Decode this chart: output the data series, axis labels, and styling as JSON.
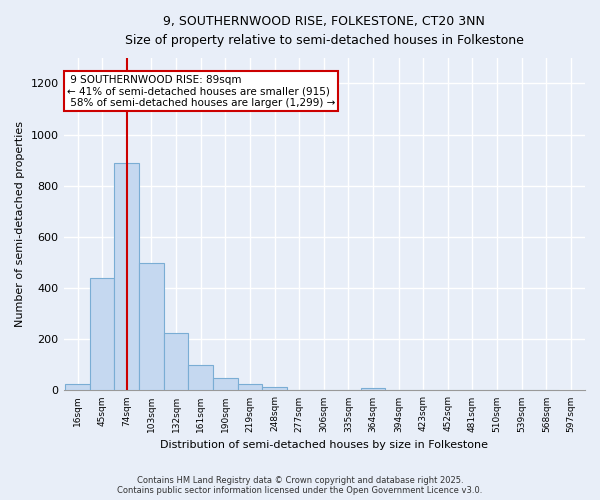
{
  "title1": "9, SOUTHERNWOOD RISE, FOLKESTONE, CT20 3NN",
  "title2": "Size of property relative to semi-detached houses in Folkestone",
  "xlabel": "Distribution of semi-detached houses by size in Folkestone",
  "ylabel": "Number of semi-detached properties",
  "bin_labels": [
    "16sqm",
    "45sqm",
    "74sqm",
    "103sqm",
    "132sqm",
    "161sqm",
    "190sqm",
    "219sqm",
    "248sqm",
    "277sqm",
    "306sqm",
    "335sqm",
    "364sqm",
    "394sqm",
    "423sqm",
    "452sqm",
    "481sqm",
    "510sqm",
    "539sqm",
    "568sqm",
    "597sqm"
  ],
  "bin_left_edges": [
    16,
    45,
    74,
    103,
    132,
    161,
    190,
    219,
    248,
    277,
    306,
    335,
    364,
    394,
    423,
    452,
    481,
    510,
    539,
    568,
    597
  ],
  "bar_heights": [
    25,
    440,
    890,
    500,
    225,
    100,
    50,
    25,
    15,
    0,
    0,
    0,
    10,
    0,
    0,
    0,
    0,
    0,
    0,
    0
  ],
  "bar_color": "#c5d8f0",
  "bar_edge_color": "#7aadd4",
  "property_size": 89,
  "vline_color": "#cc0000",
  "annotation_text": " 9 SOUTHERNWOOD RISE: 89sqm\n← 41% of semi-detached houses are smaller (915)\n 58% of semi-detached houses are larger (1,299) →",
  "annotation_box_facecolor": "#ffffff",
  "annotation_box_edgecolor": "#cc0000",
  "ylim": [
    0,
    1300
  ],
  "yticks": [
    0,
    200,
    400,
    600,
    800,
    1000,
    1200
  ],
  "background_color": "#e8eef8",
  "grid_color": "#ffffff",
  "footer1": "Contains HM Land Registry data © Crown copyright and database right 2025.",
  "footer2": "Contains public sector information licensed under the Open Government Licence v3.0."
}
